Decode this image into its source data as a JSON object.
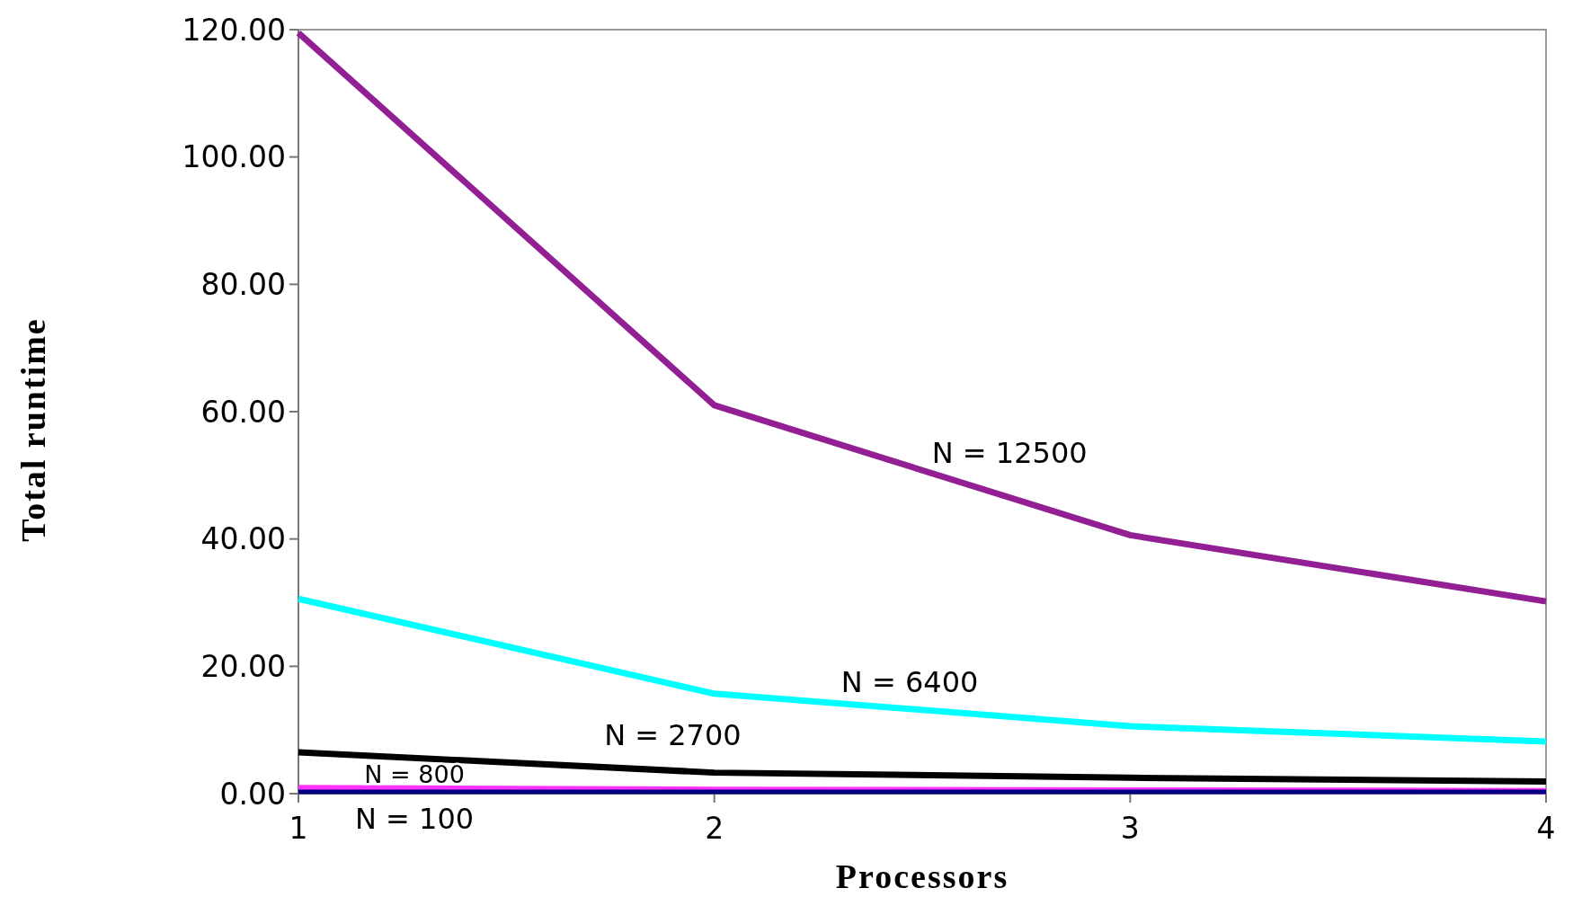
{
  "chart_data": {
    "type": "line",
    "xlabel": "Processors",
    "ylabel": "Total runtime",
    "x": [
      1,
      2,
      3,
      4
    ],
    "xlim": [
      1,
      4
    ],
    "xticks": [
      1,
      2,
      3,
      4
    ],
    "ylim": [
      0,
      120
    ],
    "yticks": [
      {
        "value": 0,
        "label": "0.00"
      },
      {
        "value": 20,
        "label": "20.00"
      },
      {
        "value": 40,
        "label": "40.00"
      },
      {
        "value": 60,
        "label": "60.00"
      },
      {
        "value": 80,
        "label": "80.00"
      },
      {
        "value": 100,
        "label": "100.00"
      },
      {
        "value": 120,
        "label": "120.00"
      }
    ],
    "grid": false,
    "marker": "none",
    "line_style": "solid",
    "series": [
      {
        "name": "N = 100",
        "color": "#000080",
        "values": [
          0.3,
          0.3,
          0.3,
          0.3
        ]
      },
      {
        "name": "N = 800",
        "color": "#ff33ff",
        "values": [
          0.9,
          0.6,
          0.5,
          0.4
        ]
      },
      {
        "name": "N = 2700",
        "color": "#000000",
        "values": [
          6.5,
          3.3,
          2.5,
          1.9
        ]
      },
      {
        "name": "N = 6400",
        "color": "#00ffff",
        "values": [
          30.6,
          15.7,
          10.6,
          8.2
        ]
      },
      {
        "name": "N =  12500",
        "color": "#921f93",
        "values": [
          119.5,
          61,
          40.6,
          30.2
        ]
      }
    ]
  }
}
